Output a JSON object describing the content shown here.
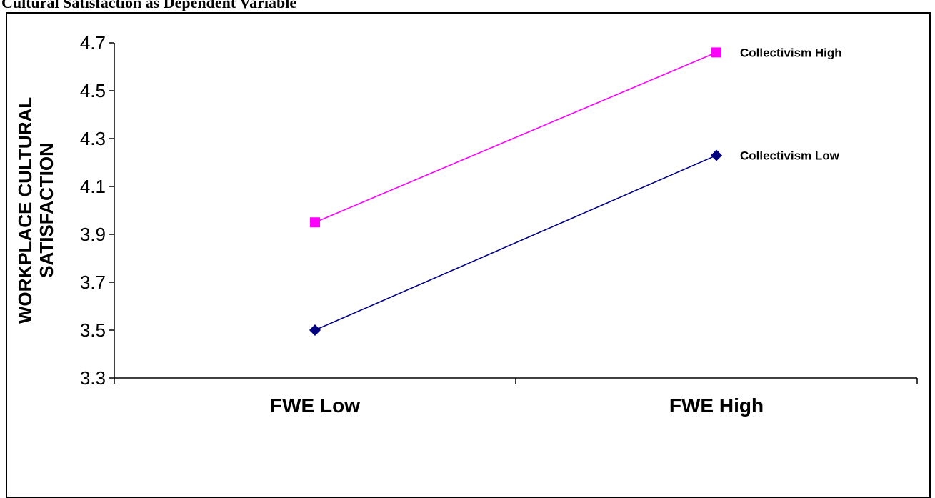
{
  "caption": "Cultural Satisfaction as Dependent Variable",
  "chart_data": {
    "type": "line",
    "title": "",
    "xlabel": "",
    "ylabel": "WORKPLACE  CULTURAL SATISFACTION",
    "ylabel_lines": [
      "WORKPLACE  CULTURAL",
      "SATISFACTION"
    ],
    "categories": [
      "FWE Low",
      "FWE High"
    ],
    "ylim": [
      3.3,
      4.7
    ],
    "yticks": [
      "3.3",
      "3.5",
      "3.7",
      "3.9",
      "4.1",
      "4.3",
      "4.5",
      "4.7"
    ],
    "grid": false,
    "series": [
      {
        "name": "Collectivism High",
        "values": [
          3.95,
          4.66
        ],
        "color": "#ff00ff",
        "marker": "square"
      },
      {
        "name": "Collectivism Low",
        "values": [
          3.5,
          4.23
        ],
        "color": "#000080",
        "marker": "diamond"
      }
    ]
  }
}
